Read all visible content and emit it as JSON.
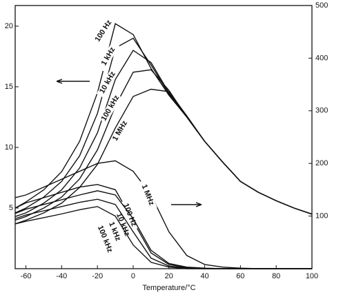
{
  "chart_data": {
    "type": "line",
    "xlabel": "Temperature/°C",
    "x": [
      -66,
      -60,
      -50,
      -40,
      -30,
      -20,
      -10,
      0,
      10,
      20,
      30,
      40,
      50,
      60,
      70,
      80,
      90,
      100
    ],
    "xlim": [
      -66,
      100
    ],
    "xticks": [
      -60,
      -40,
      -20,
      0,
      20,
      40,
      60,
      80,
      100
    ],
    "ylim": [
      0,
      21.7
    ],
    "yticks": [
      5,
      10,
      15,
      20
    ],
    "y2lim": [
      0,
      500
    ],
    "y2ticks": [
      100,
      200,
      300,
      400,
      500
    ],
    "series": [
      {
        "name": "100 Hz",
        "color": "#111111",
        "values": [
          5.0,
          5.5,
          6.5,
          8.0,
          10.5,
          14.5,
          20.2,
          19.3,
          16.5,
          14.3,
          12.5,
          10.5,
          8.8,
          7.2,
          6.3,
          5.6,
          5.0,
          4.5
        ]
      },
      {
        "name": "1 kHz",
        "color": "#111111",
        "values": [
          4.6,
          5.0,
          5.9,
          7.2,
          9.3,
          12.8,
          18.2,
          19.0,
          16.8,
          14.4,
          12.5,
          10.5,
          8.8,
          7.2,
          6.3,
          5.6,
          5.0,
          4.5
        ]
      },
      {
        "name": "10 kHz",
        "color": "#111111",
        "values": [
          4.3,
          4.6,
          5.4,
          6.5,
          8.3,
          11.2,
          15.6,
          18.0,
          17.0,
          14.5,
          12.5,
          10.5,
          8.8,
          7.2,
          6.3,
          5.6,
          5.0,
          4.5
        ]
      },
      {
        "name": "100 kHz",
        "color": "#111111",
        "values": [
          4.0,
          4.3,
          5.0,
          5.9,
          7.4,
          9.8,
          13.4,
          16.2,
          16.4,
          14.7,
          12.5,
          10.5,
          8.8,
          7.2,
          6.3,
          5.6,
          5.0,
          4.5
        ]
      },
      {
        "name": "1 MHz",
        "color": "#111111",
        "values": [
          3.7,
          4.0,
          4.6,
          5.4,
          6.7,
          8.6,
          11.6,
          14.2,
          14.8,
          14.6,
          12.6,
          10.5,
          8.8,
          7.2,
          6.3,
          5.6,
          5.0,
          4.5
        ]
      },
      {
        "name": "1 MHz",
        "color": "#111111",
        "axis": "y2",
        "values": [
          135,
          140,
          155,
          170,
          185,
          200,
          205,
          185,
          140,
          70,
          25,
          8,
          3,
          1,
          0,
          0,
          0,
          0
        ]
      },
      {
        "name": "100 Hz",
        "color": "#111111",
        "axis": "y2",
        "values": [
          115,
          125,
          135,
          145,
          155,
          160,
          150,
          90,
          30,
          8,
          2,
          0,
          0,
          0,
          0,
          0,
          0,
          0
        ]
      },
      {
        "name": "10 kHz",
        "color": "#111111",
        "axis": "y2",
        "values": [
          105,
          113,
          122,
          131,
          140,
          148,
          140,
          95,
          35,
          10,
          3,
          1,
          0,
          0,
          0,
          0,
          0,
          0
        ]
      },
      {
        "name": "1 kHz",
        "color": "#111111",
        "axis": "y2",
        "values": [
          95,
          102,
          110,
          118,
          126,
          132,
          122,
          70,
          20,
          5,
          1,
          0,
          0,
          0,
          0,
          0,
          0,
          0
        ]
      },
      {
        "name": "100 kHz",
        "color": "#111111",
        "axis": "y2",
        "values": [
          85,
          90,
          97,
          104,
          112,
          118,
          100,
          45,
          12,
          3,
          0,
          0,
          0,
          0,
          0,
          0,
          0,
          0
        ]
      }
    ]
  }
}
